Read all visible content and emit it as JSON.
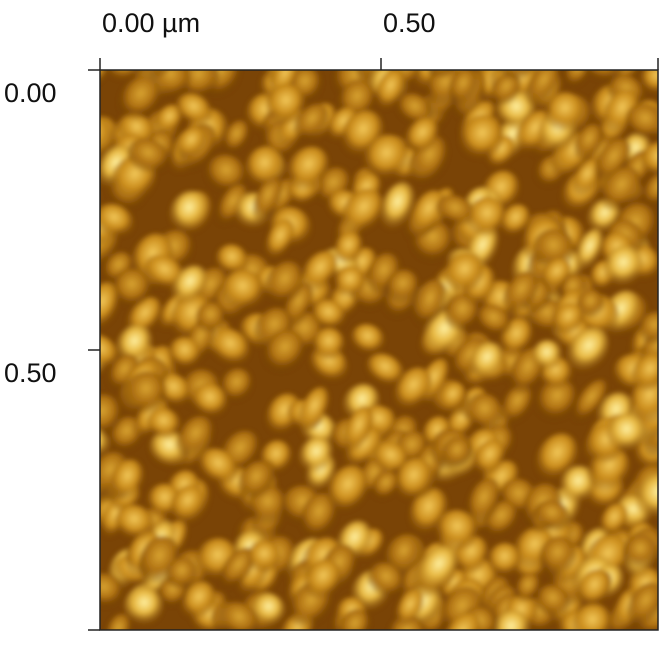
{
  "top_axis": {
    "labels": [
      "0.00 µm",
      "0.50"
    ]
  },
  "left_axis": {
    "labels": [
      "0.00",
      "0.50"
    ]
  }
}
